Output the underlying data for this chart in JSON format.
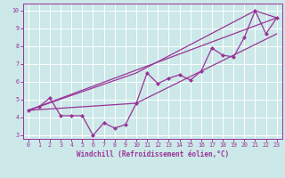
{
  "xlabel": "Windchill (Refroidissement éolien,°C)",
  "bg_color": "#cce8e8",
  "grid_color": "#ffffff",
  "line_color": "#993399",
  "xlim": [
    -0.5,
    23.5
  ],
  "ylim": [
    2.8,
    10.4
  ],
  "xticks": [
    0,
    1,
    2,
    3,
    4,
    5,
    6,
    7,
    8,
    9,
    10,
    11,
    12,
    13,
    14,
    15,
    16,
    17,
    18,
    19,
    20,
    21,
    22,
    23
  ],
  "yticks": [
    3,
    4,
    5,
    6,
    7,
    8,
    9,
    10
  ],
  "line1_x": [
    0,
    1,
    2,
    3,
    4,
    5,
    6,
    7,
    8,
    9,
    10,
    11,
    12,
    13,
    14,
    15,
    16,
    17,
    18,
    19,
    20,
    21,
    22,
    23
  ],
  "line1_y": [
    4.4,
    4.6,
    5.1,
    4.1,
    4.1,
    4.1,
    3.0,
    3.7,
    3.4,
    3.6,
    4.8,
    6.5,
    5.9,
    6.2,
    6.4,
    6.1,
    6.6,
    7.9,
    7.5,
    7.4,
    8.5,
    10.0,
    8.7,
    9.6
  ],
  "line2_x": [
    0,
    23
  ],
  "line2_y": [
    4.4,
    9.6
  ],
  "line3_x": [
    0,
    10,
    21,
    23
  ],
  "line3_y": [
    4.4,
    6.5,
    10.0,
    9.6
  ],
  "line4_x": [
    0,
    10,
    23
  ],
  "line4_y": [
    4.4,
    4.8,
    8.7
  ]
}
